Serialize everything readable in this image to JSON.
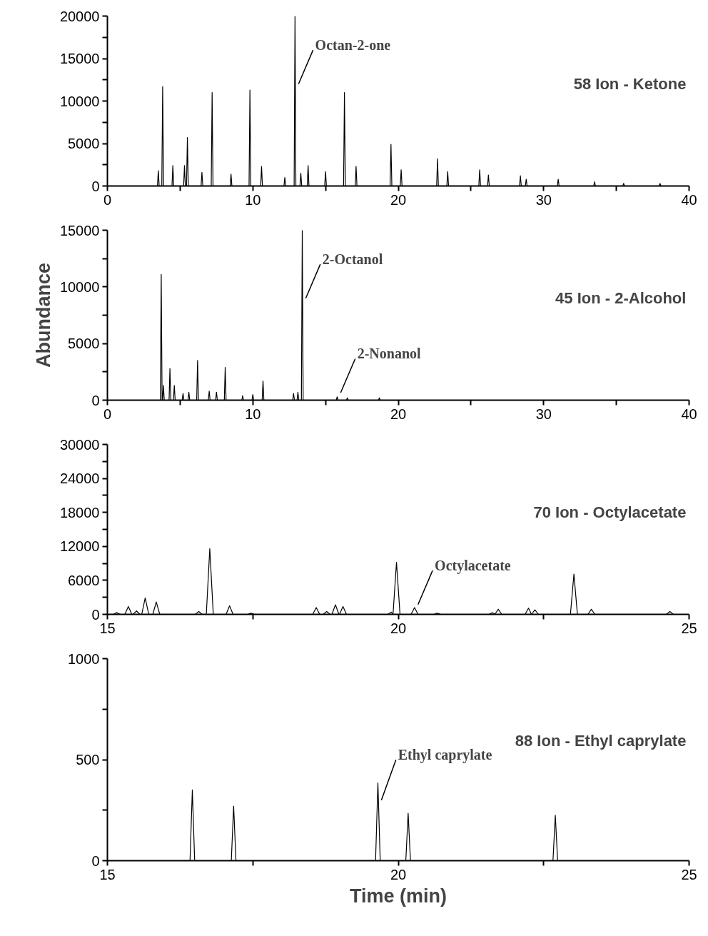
{
  "chart_data": [
    {
      "type": "line",
      "title": "58 Ion - Ketone",
      "xlim": [
        0,
        40
      ],
      "ylim": [
        0,
        20000
      ],
      "xticks": [
        0,
        {
          "value": 5,
          "label": null
        },
        10,
        {
          "value": 15,
          "label": null
        },
        20,
        {
          "value": 25,
          "label": null
        },
        30,
        {
          "value": 35,
          "label": null
        },
        40
      ],
      "yticks": [
        0,
        {
          "value": 2500,
          "label": null
        },
        5000,
        {
          "value": 7500,
          "label": null
        },
        10000,
        {
          "value": 12500,
          "label": null
        },
        15000,
        {
          "value": 17500,
          "label": null
        },
        20000
      ],
      "line_style": "solid",
      "annotations": [
        {
          "text": "Octan-2-one",
          "x": 12.9,
          "y": 20000
        }
      ],
      "series": [
        {
          "color": "#000000",
          "x": [
            3.44,
            3.5,
            3.56,
            3.74,
            3.8,
            3.86,
            4.44,
            4.5,
            4.56,
            5.24,
            5.3,
            5.36,
            5.44,
            5.5,
            5.56,
            6.44,
            6.5,
            6.56,
            7.14,
            7.2,
            7.26,
            8.44,
            8.5,
            8.56,
            9.74,
            9.8,
            9.86,
            10.54,
            10.6,
            10.66,
            12.14,
            12.2,
            12.26,
            12.84,
            12.9,
            12.96,
            13.24,
            13.3,
            13.36,
            13.74,
            13.8,
            13.86,
            14.94,
            15.0,
            15.06,
            16.24,
            16.3,
            16.36,
            17.04,
            17.1,
            17.16,
            19.44,
            19.5,
            19.56,
            20.14,
            20.2,
            20.26,
            22.64,
            22.7,
            22.76,
            23.34,
            23.4,
            23.46,
            25.54,
            25.6,
            25.66,
            26.14,
            26.2,
            26.26,
            28.34,
            28.4,
            28.46,
            28.74,
            28.8,
            28.86,
            30.94,
            31.0,
            31.06,
            33.44,
            33.5,
            33.56,
            35.44,
            35.5,
            35.56,
            37.94,
            38.0,
            38.06
          ],
          "values": [
            0,
            1800,
            0,
            0,
            11700,
            0,
            0,
            2400,
            0,
            0,
            2400,
            0,
            0,
            5700,
            0,
            0,
            1600,
            0,
            0,
            11000,
            0,
            0,
            1400,
            0,
            0,
            11300,
            0,
            0,
            2300,
            0,
            0,
            1000,
            0,
            0,
            20000,
            0,
            0,
            1500,
            0,
            0,
            2400,
            0,
            0,
            1700,
            0,
            0,
            11000,
            0,
            0,
            2300,
            0,
            0,
            4900,
            0,
            0,
            1900,
            0,
            0,
            3200,
            0,
            0,
            1700,
            0,
            0,
            1900,
            0,
            0,
            1300,
            0,
            0,
            1200,
            0,
            0,
            800,
            0,
            0,
            800,
            0,
            0,
            500,
            0,
            0,
            300,
            0,
            0,
            300,
            0
          ]
        }
      ]
    },
    {
      "type": "line",
      "title": "45 Ion - 2-Alcohol",
      "ylabel": "Abundance",
      "xlim": [
        0,
        40
      ],
      "ylim": [
        0,
        15000
      ],
      "xticks": [
        0,
        {
          "value": 5,
          "label": null
        },
        10,
        {
          "value": 15,
          "label": null
        },
        20,
        {
          "value": 25,
          "label": null
        },
        30,
        {
          "value": 35,
          "label": null
        },
        40
      ],
      "yticks": [
        0,
        {
          "value": 2500,
          "label": null
        },
        5000,
        {
          "value": 7500,
          "label": null
        },
        10000,
        {
          "value": 12500,
          "label": null
        },
        15000
      ],
      "line_style": "solid",
      "annotations": [
        {
          "text": "2-Octanol",
          "x": 13.4,
          "y": 15000
        },
        {
          "text": "2-Nonanol",
          "x": 15.8,
          "y": 300
        }
      ],
      "series": [
        {
          "color": "#000000",
          "x": [
            3.64,
            3.7,
            3.76,
            3.79,
            3.85,
            3.91,
            4.24,
            4.3,
            4.36,
            4.54,
            4.6,
            4.66,
            5.14,
            5.2,
            5.26,
            5.54,
            5.6,
            5.66,
            6.14,
            6.2,
            6.26,
            6.94,
            7.0,
            7.06,
            7.44,
            7.5,
            7.56,
            8.04,
            8.1,
            8.16,
            9.24,
            9.3,
            9.36,
            9.94,
            10.0,
            10.06,
            10.64,
            10.7,
            10.76,
            12.74,
            12.8,
            12.86,
            13.04,
            13.1,
            13.16,
            13.34,
            13.4,
            13.46,
            15.74,
            15.8,
            15.86,
            16.44,
            16.5,
            16.56,
            18.64,
            18.7,
            18.76
          ],
          "values": [
            0,
            11100,
            0,
            0,
            1300,
            0,
            0,
            2800,
            0,
            0,
            1300,
            0,
            0,
            600,
            0,
            0,
            700,
            0,
            0,
            3500,
            0,
            0,
            800,
            0,
            0,
            700,
            0,
            0,
            2900,
            0,
            0,
            400,
            0,
            0,
            500,
            0,
            0,
            1700,
            0,
            0,
            600,
            0,
            0,
            700,
            0,
            0,
            15000,
            0,
            0,
            300,
            0,
            0,
            200,
            0,
            0,
            200,
            0
          ]
        }
      ]
    },
    {
      "type": "line",
      "title": "70 Ion - Octylacetate",
      "xlim": [
        15,
        25
      ],
      "ylim": [
        0,
        30000
      ],
      "xticks": [
        15,
        {
          "value": 17.5,
          "label": null
        },
        20,
        {
          "value": 22.5,
          "label": null
        },
        25
      ],
      "yticks": [
        0,
        {
          "value": 3000,
          "label": null
        },
        6000,
        {
          "value": 9000,
          "label": null
        },
        12000,
        {
          "value": 15000,
          "label": null
        },
        18000,
        {
          "value": 21000,
          "label": null
        },
        24000,
        {
          "value": 27000,
          "label": null
        },
        30000
      ],
      "line_style": "solid",
      "annotations": [
        {
          "text": "Octylacetate",
          "x": 20.28,
          "y": 1200
        }
      ],
      "series": [
        {
          "color": "#000000",
          "x": [
            15.1,
            15.16,
            15.22,
            15.3,
            15.36,
            15.42,
            15.44,
            15.5,
            15.56,
            15.59,
            15.65,
            15.71,
            15.78,
            15.84,
            15.9,
            16.51,
            16.57,
            16.63,
            16.7,
            16.76,
            16.82,
            17.04,
            17.1,
            17.16,
            17.41,
            17.47,
            17.53,
            18.53,
            18.59,
            18.65,
            18.71,
            18.77,
            18.83,
            18.86,
            18.92,
            18.98,
            18.99,
            19.05,
            19.11,
            19.82,
            19.88,
            19.91,
            19.97,
            20.03,
            20.22,
            20.28,
            20.34,
            20.61,
            20.67,
            20.73,
            21.56,
            21.62,
            21.66,
            21.72,
            21.78,
            22.18,
            22.24,
            22.29,
            22.35,
            22.41,
            22.96,
            23.02,
            23.08,
            23.26,
            23.32,
            23.38,
            24.61,
            24.67,
            24.73
          ],
          "values": [
            0,
            300,
            0,
            0,
            1400,
            0,
            0,
            600,
            0,
            0,
            2900,
            0,
            0,
            2200,
            0,
            0,
            500,
            0,
            0,
            11600,
            0,
            0,
            1500,
            0,
            0,
            200,
            0,
            0,
            1200,
            0,
            0,
            500,
            0,
            0,
            1700,
            0,
            0,
            1400,
            0,
            0,
            400,
            0,
            9200,
            0,
            0,
            1200,
            0,
            0,
            200,
            0,
            0,
            300,
            0,
            900,
            0,
            0,
            1100,
            0,
            800,
            0,
            0,
            7100,
            0,
            0,
            900,
            0,
            0,
            500,
            0
          ]
        }
      ]
    },
    {
      "type": "line",
      "title": "88 Ion - Ethyl caprylate",
      "xlabel": "Time (min)",
      "xlim": [
        15,
        25
      ],
      "ylim": [
        0,
        1000
      ],
      "xticks": [
        15,
        {
          "value": 17.5,
          "label": null
        },
        20,
        {
          "value": 22.5,
          "label": null
        },
        25
      ],
      "yticks": [
        0,
        {
          "value": 250,
          "label": null
        },
        500,
        {
          "value": 750,
          "label": null
        },
        1000
      ],
      "line_style": "solid",
      "annotations": [
        {
          "text": "Ethyl caprylate",
          "x": 19.65,
          "y": 385
        }
      ],
      "series": [
        {
          "color": "#000000",
          "x": [
            16.42,
            16.46,
            16.5,
            17.13,
            17.17,
            17.21,
            19.61,
            19.65,
            19.69,
            20.13,
            20.17,
            20.21,
            22.66,
            22.7,
            22.74
          ],
          "values": [
            0,
            350,
            0,
            0,
            270,
            0,
            0,
            385,
            0,
            0,
            235,
            0,
            0,
            225,
            0
          ]
        }
      ]
    }
  ]
}
